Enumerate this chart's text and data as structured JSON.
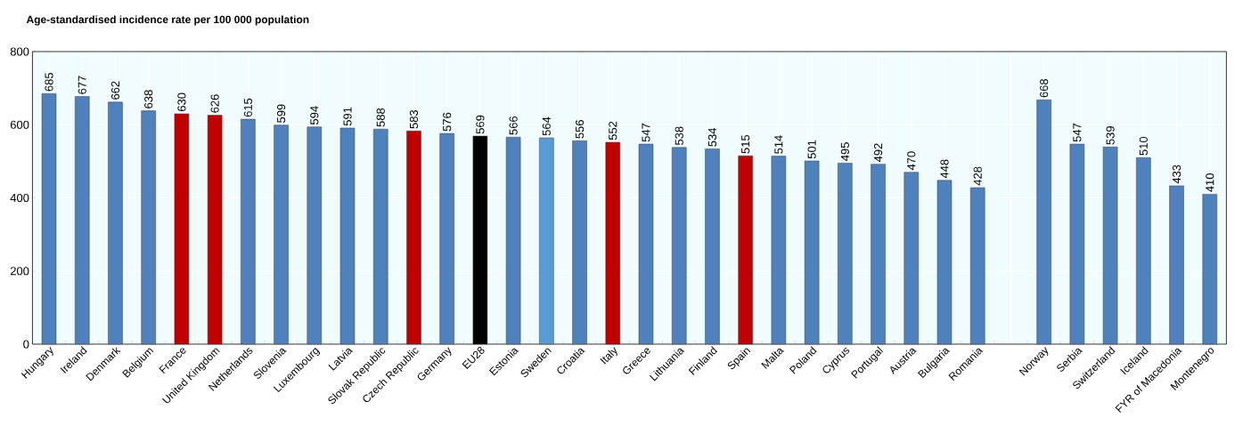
{
  "chart_data": {
    "type": "bar",
    "ylabel": "Age-standardised incidence rate per 100 000 population",
    "categories": [
      "Hungary",
      "Ireland",
      "Denmark",
      "Belgium",
      "France",
      "United Kingdom",
      "Netherlands",
      "Slovenia",
      "Luxembourg",
      "Latvia",
      "Slovak Republic",
      "Czech Republic",
      "Germany",
      "EU28",
      "Estonia",
      "Sweden",
      "Croatia",
      "Italy",
      "Greece",
      "Lithuania",
      "Finland",
      "Spain",
      "Malta",
      "Poland",
      "Cyprus",
      "Portugal",
      "Austria",
      "Bulgaria",
      "Romania",
      null,
      "Norway",
      "Serbia",
      "Switzerland",
      "Iceland",
      "FYR of Macedonia",
      "Montenegro"
    ],
    "values": [
      685,
      677,
      662,
      638,
      630,
      626,
      615,
      599,
      594,
      591,
      588,
      583,
      576,
      569,
      566,
      564,
      556,
      552,
      547,
      538,
      534,
      515,
      514,
      501,
      495,
      492,
      470,
      448,
      428,
      null,
      668,
      547,
      539,
      510,
      433,
      410
    ],
    "colors": [
      "#4f81bd",
      "#4f81bd",
      "#4f81bd",
      "#4f81bd",
      "#c00000",
      "#c00000",
      "#4f81bd",
      "#4f81bd",
      "#4f81bd",
      "#4f81bd",
      "#4f81bd",
      "#c00000",
      "#4f81bd",
      "#000000",
      "#4f81bd",
      "#5b9bd5",
      "#4f81bd",
      "#c00000",
      "#4f81bd",
      "#4f81bd",
      "#4f81bd",
      "#c00000",
      "#4f81bd",
      "#4f81bd",
      "#4f81bd",
      "#4f81bd",
      "#4f81bd",
      "#4f81bd",
      "#4f81bd",
      "#4f81bd",
      "#4f81bd",
      "#4f81bd",
      "#4f81bd",
      "#4f81bd",
      "#4f81bd",
      "#4f81bd"
    ],
    "ylim": [
      0,
      800
    ],
    "yticks": [
      0,
      200,
      400,
      600,
      800
    ],
    "grid": true,
    "data_labels": true
  }
}
